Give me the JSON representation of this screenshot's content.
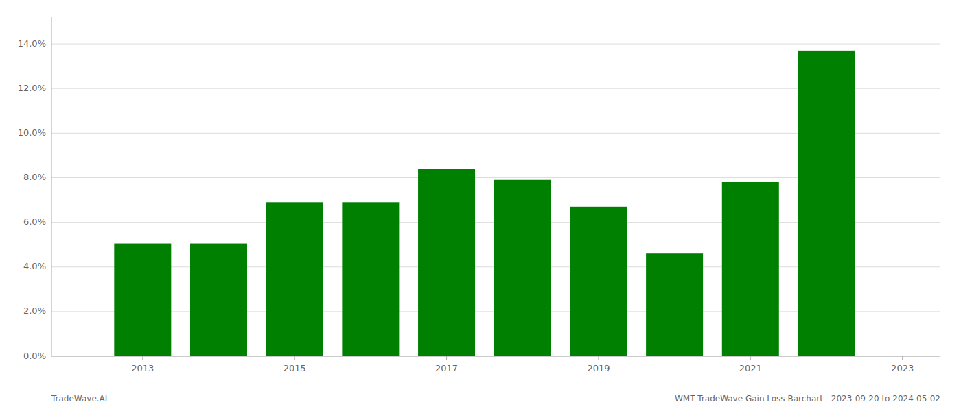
{
  "chart_data": {
    "type": "bar",
    "x": [
      2013,
      2014,
      2015,
      2016,
      2017,
      2018,
      2019,
      2020,
      2021,
      2022
    ],
    "values": [
      0.0505,
      0.0505,
      0.069,
      0.069,
      0.084,
      0.079,
      0.067,
      0.046,
      0.078,
      0.137
    ],
    "color": "#008000",
    "xlim": [
      2011.8,
      2023.5
    ],
    "xticks": [
      2013,
      2015,
      2017,
      2019,
      2021,
      2023
    ],
    "ylim": [
      0,
      0.152
    ],
    "yticks": [
      {
        "value": 0.0,
        "label": "0.0%"
      },
      {
        "value": 0.02,
        "label": "2.0%"
      },
      {
        "value": 0.04,
        "label": "4.0%"
      },
      {
        "value": 0.06,
        "label": "6.0%"
      },
      {
        "value": 0.08,
        "label": "8.0%"
      },
      {
        "value": 0.1,
        "label": "10.0%"
      },
      {
        "value": 0.12,
        "label": "12.0%"
      },
      {
        "value": 0.14,
        "label": "14.0%"
      }
    ],
    "grid": true,
    "annotations": [
      "TradeWave.AI",
      "WMT TradeWave Gain Loss Barchart - 2023-09-20 to 2024-05-02"
    ]
  }
}
